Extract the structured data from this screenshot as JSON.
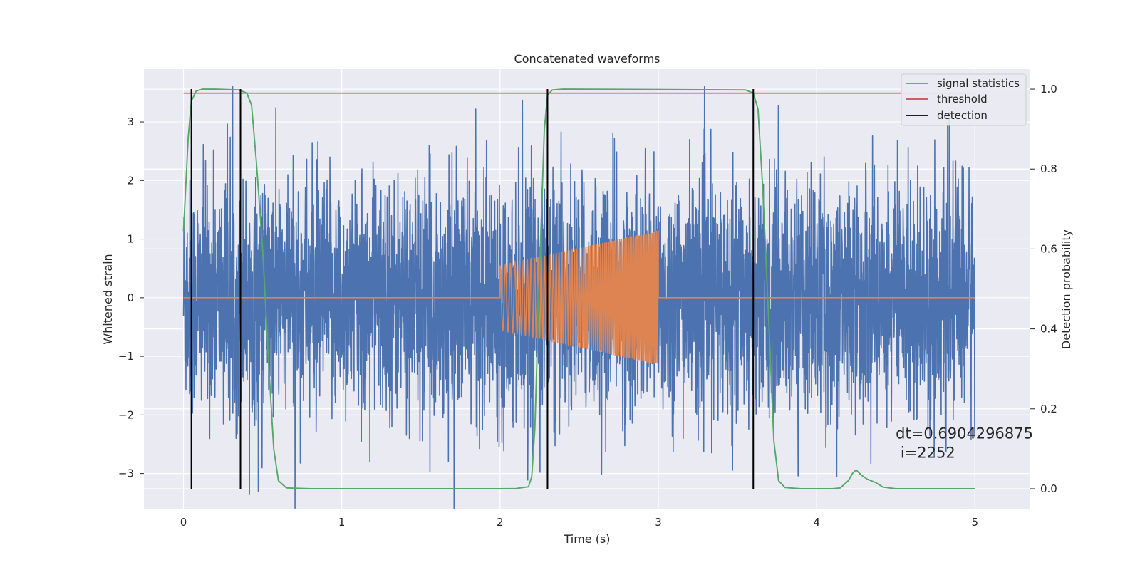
{
  "chart_data": {
    "type": "line",
    "title": "Concatenated waveforms",
    "xlabel": "Time (s)",
    "ylabel": "Whitened strain",
    "ylabel_right": "Detection probability",
    "xlim": [
      -0.25,
      5.35
    ],
    "ylim": [
      -3.6,
      3.9
    ],
    "ylim_right": [
      -0.05,
      1.05
    ],
    "x_ticks": [
      0,
      1,
      2,
      3,
      4,
      5
    ],
    "x_tick_labels": [
      "0",
      "1",
      "2",
      "3",
      "4",
      "5"
    ],
    "y_ticks": [
      -3,
      -2,
      -1,
      0,
      1,
      2,
      3
    ],
    "y_tick_labels": [
      "−3",
      "−2",
      "−1",
      "0",
      "1",
      "2",
      "3"
    ],
    "y_right_ticks": [
      0.0,
      0.2,
      0.4,
      0.6,
      0.8,
      1.0
    ],
    "y_right_tick_labels": [
      "0.0",
      "0.2",
      "0.4",
      "0.6",
      "0.8",
      "1.0"
    ],
    "grid": true,
    "legend_position": "top-right",
    "legend": [
      "signal statistics",
      "threshold",
      "detection"
    ],
    "series": [
      {
        "name": "",
        "axis": "left",
        "kind": "noise",
        "color": "#4c72b0",
        "x_range": [
          0,
          5
        ],
        "typical_amplitude": 1.8,
        "max_abs": 3.6
      },
      {
        "name": "",
        "axis": "left",
        "kind": "chirp",
        "color": "#dd8452",
        "x_range": [
          0,
          5
        ],
        "chirp_start": 2.0,
        "chirp_end": 3.0,
        "amplitude_start": 0.55,
        "amplitude_end": 1.15
      },
      {
        "name": "signal statistics",
        "axis": "right",
        "color": "#55a868",
        "x": [
          0.0,
          0.03,
          0.05,
          0.08,
          0.12,
          0.2,
          0.35,
          0.4,
          0.43,
          0.46,
          0.5,
          0.54,
          0.57,
          0.6,
          0.65,
          0.8,
          2.0,
          2.1,
          2.18,
          2.2,
          2.22,
          2.25,
          2.28,
          2.3,
          2.33,
          2.4,
          3.55,
          3.6,
          3.63,
          3.66,
          3.7,
          3.73,
          3.76,
          3.8,
          3.9,
          4.1,
          4.15,
          4.2,
          4.23,
          4.25,
          4.28,
          4.32,
          4.37,
          4.42,
          4.5,
          5.0
        ],
        "y": [
          0.645,
          0.88,
          0.97,
          0.995,
          1.0,
          1.0,
          0.998,
          0.99,
          0.96,
          0.82,
          0.6,
          0.3,
          0.1,
          0.02,
          0.002,
          0.0,
          0.0,
          0.0005,
          0.005,
          0.03,
          0.15,
          0.55,
          0.9,
          0.985,
          0.998,
          1.0,
          0.998,
          0.99,
          0.95,
          0.75,
          0.4,
          0.12,
          0.02,
          0.003,
          0.0,
          0.0,
          0.002,
          0.02,
          0.04,
          0.047,
          0.035,
          0.024,
          0.016,
          0.004,
          0.0,
          0.0
        ]
      },
      {
        "name": "threshold",
        "axis": "right",
        "color": "#c44e52",
        "x": [
          0,
          5
        ],
        "y": [
          0.99,
          0.99
        ]
      }
    ],
    "detections": {
      "name": "detection",
      "color": "#000000",
      "x": [
        0.05,
        0.36,
        2.3,
        3.6
      ],
      "y_range_right": [
        0.0,
        1.0
      ]
    },
    "annotation": {
      "line1": "dt=0.6904296875",
      "line2": " i=2252",
      "x": 4.5,
      "y": -2.4
    }
  }
}
